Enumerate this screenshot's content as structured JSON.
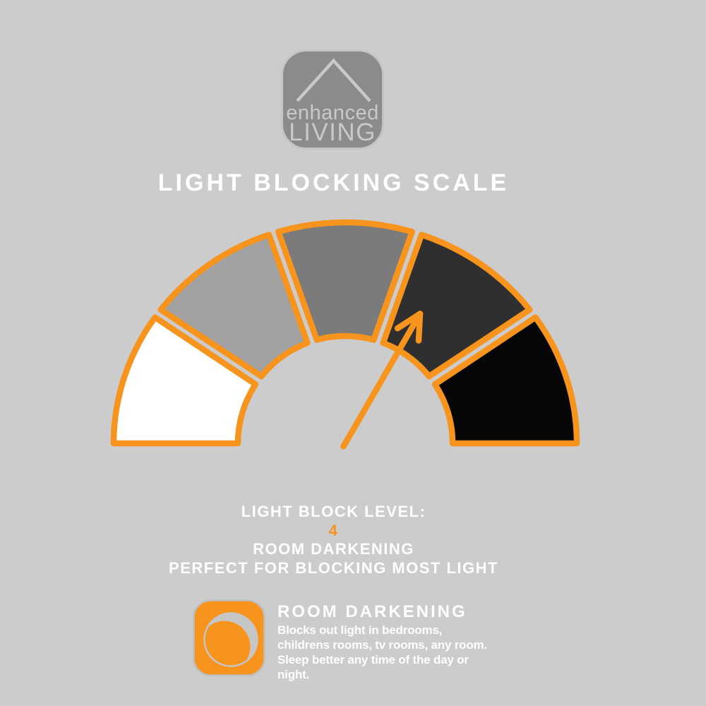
{
  "colors": {
    "background": "#CCCCCC",
    "accent": "#F7941E",
    "logo_fill": "#8B8B8B",
    "logo_fg": "#C9C9CC",
    "badge_border": "#BEBEBE",
    "moon_gray": "#C6C6C6",
    "text_white": "#FFFFFF"
  },
  "logo": {
    "line1": "enhanced",
    "line2": "LIVING"
  },
  "title": "LIGHT BLOCKING SCALE",
  "chart_data": {
    "type": "gauge",
    "title": "LIGHT BLOCKING SCALE",
    "arc_span_degrees": 180,
    "segment_count": 5,
    "segments": [
      {
        "level": 1,
        "color": "#FFFFFF"
      },
      {
        "level": 2,
        "color": "#A1A1A1"
      },
      {
        "level": 3,
        "color": "#7B7B7B"
      },
      {
        "level": 4,
        "color": "#2F2F2F"
      },
      {
        "level": 5,
        "color": "#060606"
      }
    ],
    "current_level": 4,
    "current_level_label": "ROOM DARKENING",
    "needle_angle_degrees": 60,
    "needle_color": "#F7941E",
    "outline_color": "#F7941E"
  },
  "level_text": {
    "label": "LIGHT BLOCK LEVEL:",
    "value": "4",
    "name": "ROOM DARKENING",
    "description": "PERFECT FOR BLOCKING MOST LIGHT"
  },
  "badge": {
    "icon": "moon-icon",
    "heading": "ROOM DARKENING",
    "lines": [
      "Blocks out light in bedrooms,",
      "childrens rooms, tv rooms, any room.",
      "Sleep better any time of the day or",
      "night."
    ]
  }
}
